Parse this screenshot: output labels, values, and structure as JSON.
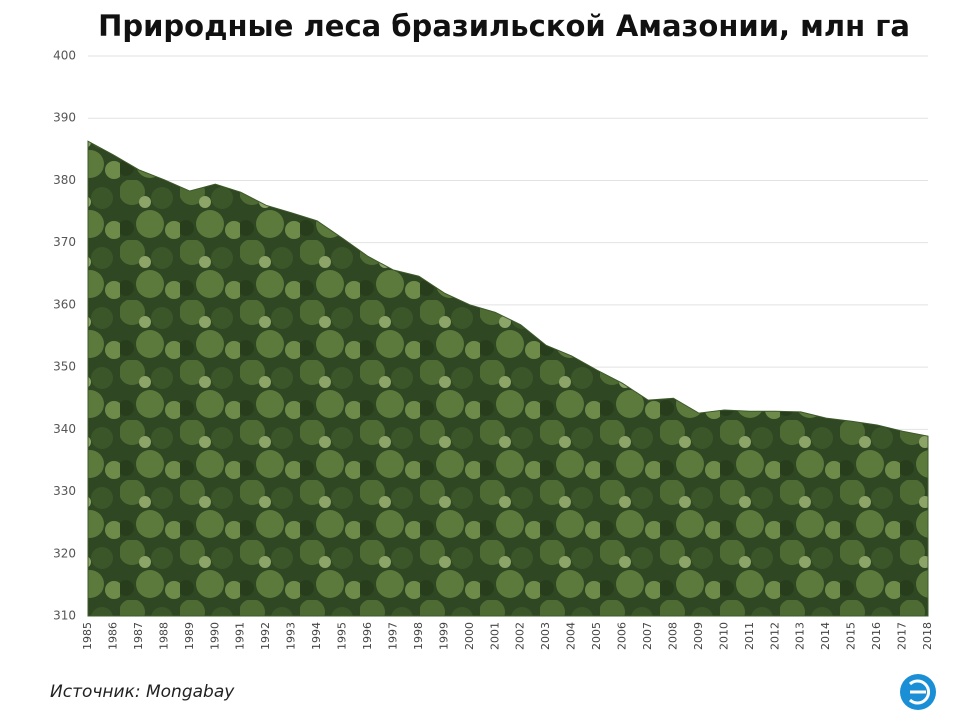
{
  "chart_data": {
    "type": "area",
    "title": "Природные леса бразильской Амазонии, млн га",
    "source": "Источник: Mongabay",
    "categories": [
      "1985",
      "1986",
      "1987",
      "1988",
      "1989",
      "1990",
      "1991",
      "1992",
      "1993",
      "1994",
      "1995",
      "1996",
      "1997",
      "1998",
      "1999",
      "2000",
      "2001",
      "2002",
      "2003",
      "2004",
      "2005",
      "2006",
      "2007",
      "2008",
      "2009",
      "2010",
      "2011",
      "2012",
      "2013",
      "2014",
      "2015",
      "2016",
      "2017",
      "2018"
    ],
    "values": [
      386.3,
      384.1,
      381.7,
      380.1,
      378.3,
      379.4,
      378.1,
      376.0,
      374.8,
      373.5,
      370.7,
      367.8,
      365.6,
      364.6,
      361.9,
      360.0,
      358.8,
      356.8,
      353.5,
      351.8,
      349.5,
      347.4,
      344.7,
      345.0,
      342.6,
      343.1,
      342.9,
      342.9,
      342.8,
      341.8,
      341.3,
      340.7,
      339.7,
      338.9
    ],
    "color": "#3d5a2a",
    "ylim": [
      310,
      400
    ],
    "yticks": [
      310,
      320,
      330,
      340,
      350,
      360,
      370,
      380,
      390,
      400
    ],
    "grid": true
  }
}
